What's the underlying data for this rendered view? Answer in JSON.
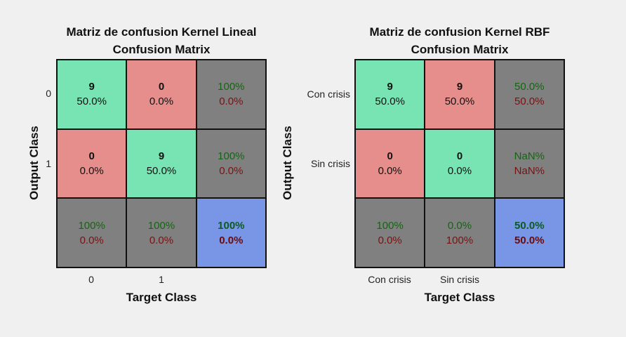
{
  "chart_data": [
    {
      "type": "table",
      "title": "Matriz de confusion Kernel Lineal",
      "subtitle": "Confusion Matrix",
      "ylabel": "Output Class",
      "xlabel": "Target Class",
      "row_labels": [
        "0",
        "1"
      ],
      "col_labels": [
        "0",
        "1"
      ],
      "cells": [
        [
          {
            "l1": "9",
            "l2": "50.0%",
            "kind": "green"
          },
          {
            "l1": "0",
            "l2": "0.0%",
            "kind": "red"
          },
          {
            "l1": "100%",
            "l2": "0.0%",
            "kind": "gray"
          }
        ],
        [
          {
            "l1": "0",
            "l2": "0.0%",
            "kind": "red"
          },
          {
            "l1": "9",
            "l2": "50.0%",
            "kind": "green"
          },
          {
            "l1": "100%",
            "l2": "0.0%",
            "kind": "gray"
          }
        ],
        [
          {
            "l1": "100%",
            "l2": "0.0%",
            "kind": "gray"
          },
          {
            "l1": "100%",
            "l2": "0.0%",
            "kind": "gray"
          },
          {
            "l1": "100%",
            "l2": "0.0%",
            "kind": "blue"
          }
        ]
      ]
    },
    {
      "type": "table",
      "title": "Matriz de confusion Kernel RBF",
      "subtitle": "Confusion Matrix",
      "ylabel": "Output Class",
      "xlabel": "Target Class",
      "row_labels": [
        "Con crisis",
        "Sin crisis"
      ],
      "col_labels": [
        "Con crisis",
        "Sin crisis"
      ],
      "cells": [
        [
          {
            "l1": "9",
            "l2": "50.0%",
            "kind": "green"
          },
          {
            "l1": "9",
            "l2": "50.0%",
            "kind": "red"
          },
          {
            "l1": "50.0%",
            "l2": "50.0%",
            "kind": "gray"
          }
        ],
        [
          {
            "l1": "0",
            "l2": "0.0%",
            "kind": "red"
          },
          {
            "l1": "0",
            "l2": "0.0%",
            "kind": "green"
          },
          {
            "l1": "NaN%",
            "l2": "NaN%",
            "kind": "gray"
          }
        ],
        [
          {
            "l1": "100%",
            "l2": "0.0%",
            "kind": "gray"
          },
          {
            "l1": "0.0%",
            "l2": "100%",
            "kind": "gray"
          },
          {
            "l1": "50.0%",
            "l2": "50.0%",
            "kind": "blue"
          }
        ]
      ]
    }
  ],
  "colors": {
    "correct": "#78e3b3",
    "incorrect": "#e68e8b",
    "summary": "#808080",
    "overall": "#7996e6",
    "pct_correct": "#126612",
    "pct_incorrect": "#7a1111"
  }
}
